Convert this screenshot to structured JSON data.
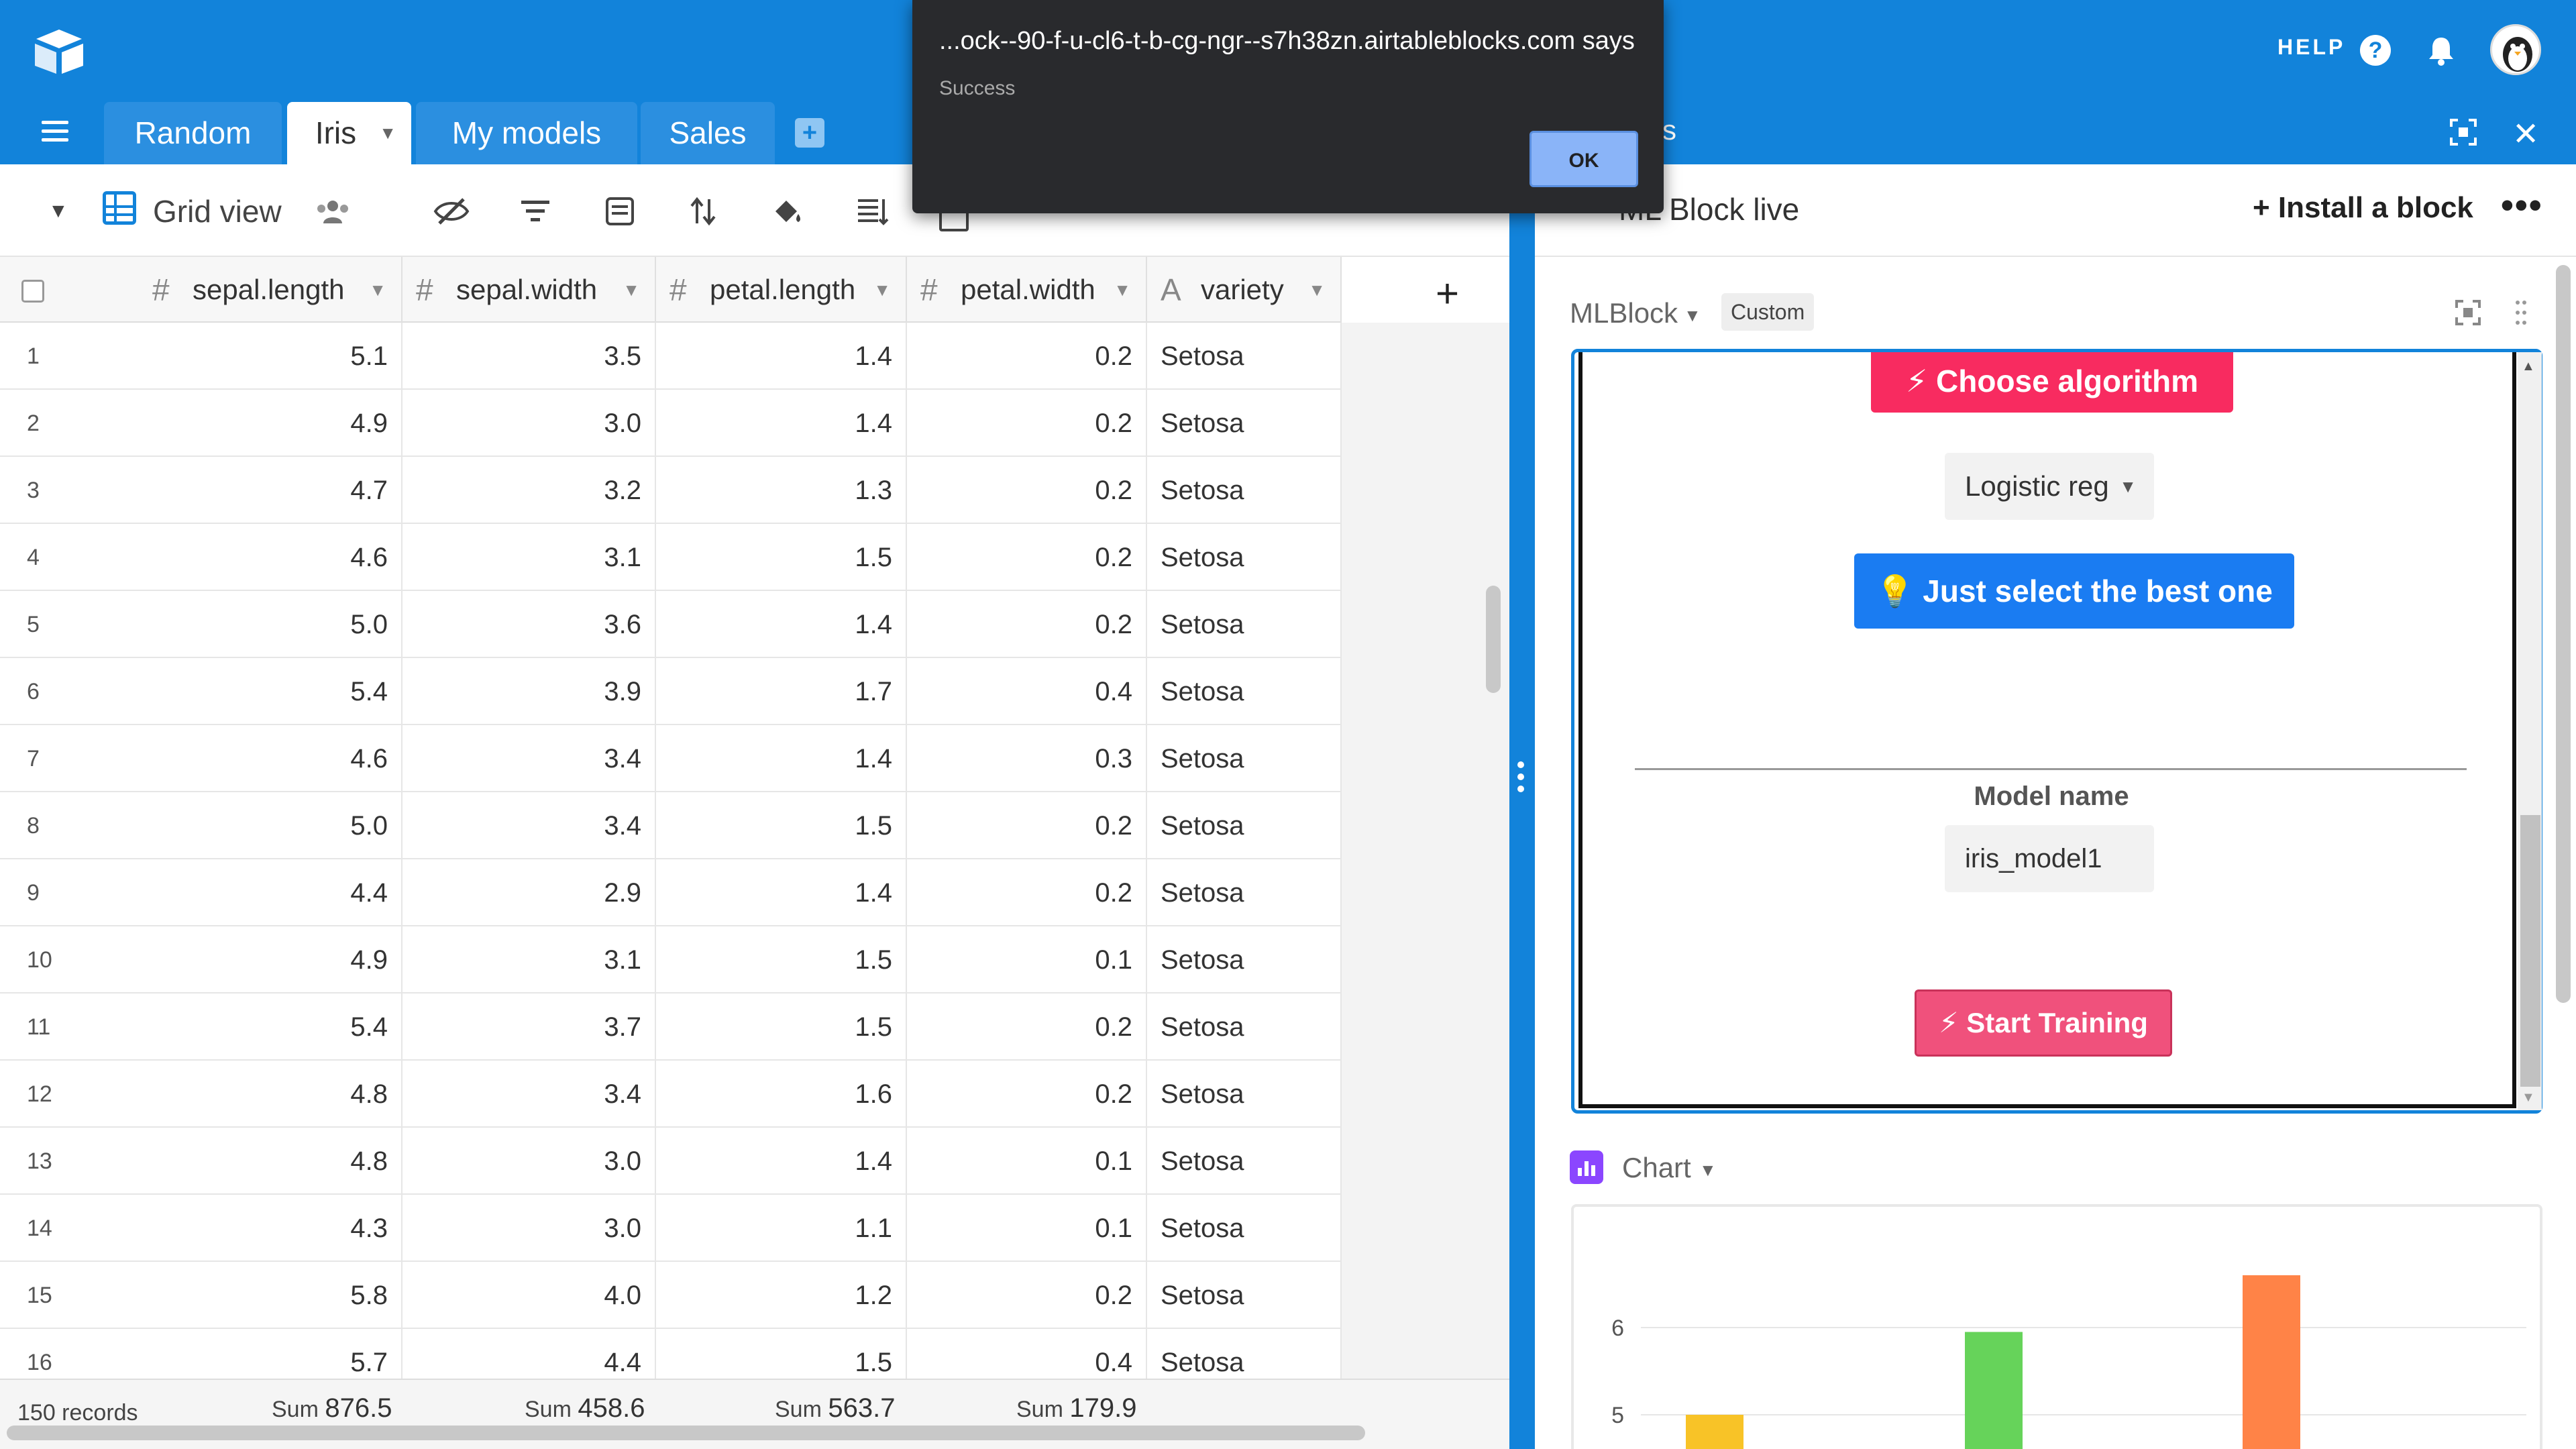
{
  "header": {
    "tabs": [
      {
        "label": "Random"
      },
      {
        "label": "Iris"
      },
      {
        "label": "My models"
      },
      {
        "label": "Sales"
      }
    ],
    "help_label": "HELP",
    "panel_tab_fragment": "s"
  },
  "toolbar": {
    "view_name": "Grid view",
    "view_name_left": "…"
  },
  "grid": {
    "columns": [
      {
        "name": "sepal.length",
        "type": "number"
      },
      {
        "name": "sepal.width",
        "type": "number"
      },
      {
        "name": "petal.length",
        "type": "number"
      },
      {
        "name": "petal.width",
        "type": "number"
      },
      {
        "name": "variety",
        "type": "text"
      }
    ],
    "rows": [
      {
        "id": "1",
        "v": [
          "5.1",
          "3.5",
          "1.4",
          "0.2",
          "Setosa"
        ]
      },
      {
        "id": "2",
        "v": [
          "4.9",
          "3.0",
          "1.4",
          "0.2",
          "Setosa"
        ]
      },
      {
        "id": "3",
        "v": [
          "4.7",
          "3.2",
          "1.3",
          "0.2",
          "Setosa"
        ]
      },
      {
        "id": "4",
        "v": [
          "4.6",
          "3.1",
          "1.5",
          "0.2",
          "Setosa"
        ]
      },
      {
        "id": "5",
        "v": [
          "5.0",
          "3.6",
          "1.4",
          "0.2",
          "Setosa"
        ]
      },
      {
        "id": "6",
        "v": [
          "5.4",
          "3.9",
          "1.7",
          "0.4",
          "Setosa"
        ]
      },
      {
        "id": "7",
        "v": [
          "4.6",
          "3.4",
          "1.4",
          "0.3",
          "Setosa"
        ]
      },
      {
        "id": "8",
        "v": [
          "5.0",
          "3.4",
          "1.5",
          "0.2",
          "Setosa"
        ]
      },
      {
        "id": "9",
        "v": [
          "4.4",
          "2.9",
          "1.4",
          "0.2",
          "Setosa"
        ]
      },
      {
        "id": "10",
        "v": [
          "4.9",
          "3.1",
          "1.5",
          "0.1",
          "Setosa"
        ]
      },
      {
        "id": "11",
        "v": [
          "5.4",
          "3.7",
          "1.5",
          "0.2",
          "Setosa"
        ]
      },
      {
        "id": "12",
        "v": [
          "4.8",
          "3.4",
          "1.6",
          "0.2",
          "Setosa"
        ]
      },
      {
        "id": "13",
        "v": [
          "4.8",
          "3.0",
          "1.4",
          "0.1",
          "Setosa"
        ]
      },
      {
        "id": "14",
        "v": [
          "4.3",
          "3.0",
          "1.1",
          "0.1",
          "Setosa"
        ]
      },
      {
        "id": "15",
        "v": [
          "5.8",
          "4.0",
          "1.2",
          "0.2",
          "Setosa"
        ]
      },
      {
        "id": "16",
        "v": [
          "5.7",
          "4.4",
          "1.5",
          "0.4",
          "Setosa"
        ]
      }
    ]
  },
  "footer": {
    "records": "150 records",
    "sum_label": "Sum",
    "sums": [
      "876.5",
      "458.6",
      "563.7",
      "179.9"
    ]
  },
  "panel": {
    "title": "ML Block live",
    "install_label": "Install a block",
    "block_name": "MLBlock",
    "custom_badge": "Custom",
    "choose_algorithm": "Choose algorithm",
    "algorithm_selected": "Logistic reg",
    "best_one": "Just select the best one",
    "model_name_label": "Model name",
    "model_name_value": "iris_model1",
    "start_training": "Start Training",
    "chart_block_name": "Chart"
  },
  "chart_data": {
    "type": "bar",
    "categories": [
      "",
      "",
      ""
    ],
    "values": [
      5.0,
      5.95,
      6.6
    ],
    "colors": [
      "#f8c327",
      "#66d35a",
      "#ff8347"
    ],
    "y_ticks": [
      5,
      6
    ],
    "ylim": [
      4.5,
      7.0
    ],
    "title": "",
    "xlabel": "",
    "ylabel": ""
  },
  "alert": {
    "title": "...ock--90-f-u-cl6-t-b-cg-ngr--s7h38zn.airtableblocks.com says",
    "message": "Success",
    "ok_label": "OK"
  }
}
